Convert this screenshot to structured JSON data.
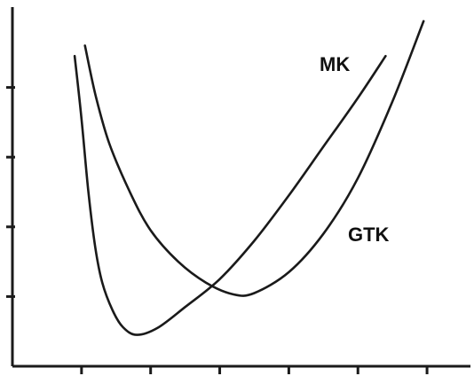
{
  "chart_data": {
    "type": "line",
    "title": "",
    "xlabel": "",
    "ylabel": "",
    "xlim": [
      0,
      6.5
    ],
    "ylim": [
      0,
      5
    ],
    "x_ticks": [
      1,
      2,
      3,
      4,
      5,
      6
    ],
    "y_ticks": [
      1,
      2,
      3,
      4
    ],
    "x_tick_labels": [],
    "y_tick_labels": [],
    "grid": false,
    "legend": "none",
    "series": [
      {
        "name": "MK",
        "color": "#1a1a1a",
        "points": [
          [
            0.9,
            4.45
          ],
          [
            1.0,
            3.55
          ],
          [
            1.1,
            2.5
          ],
          [
            1.2,
            1.7
          ],
          [
            1.3,
            1.2
          ],
          [
            1.45,
            0.8
          ],
          [
            1.6,
            0.56
          ],
          [
            1.8,
            0.45
          ],
          [
            2.1,
            0.55
          ],
          [
            2.5,
            0.85
          ],
          [
            3.0,
            1.25
          ],
          [
            3.5,
            1.8
          ],
          [
            4.0,
            2.45
          ],
          [
            4.5,
            3.15
          ],
          [
            5.0,
            3.85
          ],
          [
            5.4,
            4.45
          ]
        ]
      },
      {
        "name": "GTK",
        "color": "#1a1a1a",
        "points": [
          [
            1.05,
            4.6
          ],
          [
            1.2,
            3.9
          ],
          [
            1.4,
            3.2
          ],
          [
            1.7,
            2.5
          ],
          [
            2.0,
            1.95
          ],
          [
            2.4,
            1.5
          ],
          [
            2.8,
            1.2
          ],
          [
            3.2,
            1.03
          ],
          [
            3.5,
            1.05
          ],
          [
            4.0,
            1.35
          ],
          [
            4.5,
            1.9
          ],
          [
            5.0,
            2.7
          ],
          [
            5.5,
            3.8
          ],
          [
            5.95,
            4.95
          ]
        ]
      }
    ]
  }
}
